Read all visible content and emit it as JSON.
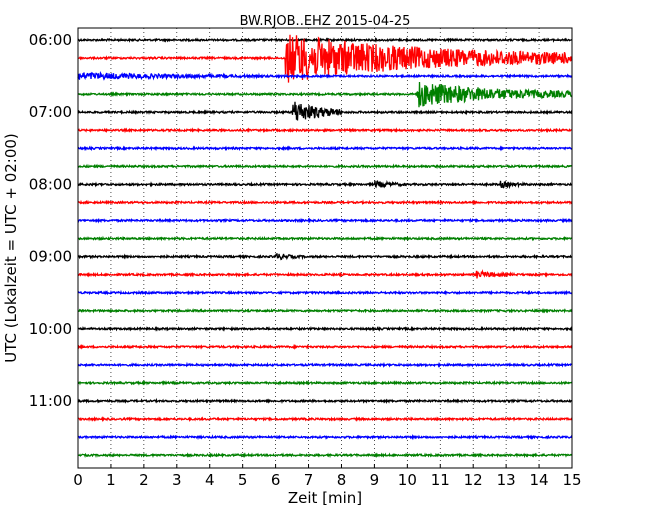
{
  "chart_data": {
    "type": "line",
    "title": "BW.RJOB..EHZ 2015-04-25",
    "xlabel": "Zeit  [min]",
    "ylabel": "UTC (Lokalzeit = UTC + 02:00)",
    "xlim": [
      0,
      15
    ],
    "x_ticks": [
      "0",
      "1",
      "2",
      "3",
      "4",
      "5",
      "6",
      "7",
      "8",
      "9",
      "10",
      "11",
      "12",
      "13",
      "14",
      "15"
    ],
    "y_tick_labels": [
      {
        "label": "06:00",
        "row": 0
      },
      {
        "label": "07:00",
        "row": 4
      },
      {
        "label": "08:00",
        "row": 8
      },
      {
        "label": "09:00",
        "row": 12
      },
      {
        "label": "10:00",
        "row": 16
      },
      {
        "label": "11:00",
        "row": 20
      }
    ],
    "row_minutes": 15,
    "row_count": 24,
    "color_cycle": [
      "#000000",
      "#ff0000",
      "#0000ff",
      "#008000"
    ],
    "grid": "vertical dotted at each minute",
    "events": [
      {
        "row": 1,
        "start_min": 6.3,
        "end_min": 15,
        "amplitude": "very large",
        "color": "#ff0000"
      },
      {
        "row": 2,
        "start_min": 0,
        "end_min": 7,
        "amplitude": "small",
        "color": "#0000ff"
      },
      {
        "row": 3,
        "start_min": 10.3,
        "end_min": 15,
        "amplitude": "large",
        "color": "#008000"
      },
      {
        "row": 4,
        "start_min": 6.5,
        "end_min": 8,
        "amplitude": "large",
        "color": "#000000"
      },
      {
        "row": 8,
        "start_min": 9.0,
        "end_min": 10.2,
        "amplitude": "small",
        "color": "#000000"
      },
      {
        "row": 8,
        "start_min": 12.8,
        "end_min": 13.8,
        "amplitude": "small",
        "color": "#000000"
      },
      {
        "row": 12,
        "start_min": 6.0,
        "end_min": 7.0,
        "amplitude": "small",
        "color": "#000000"
      },
      {
        "row": 13,
        "start_min": 12.1,
        "end_min": 13.5,
        "amplitude": "small",
        "color": "#ff0000"
      }
    ]
  }
}
